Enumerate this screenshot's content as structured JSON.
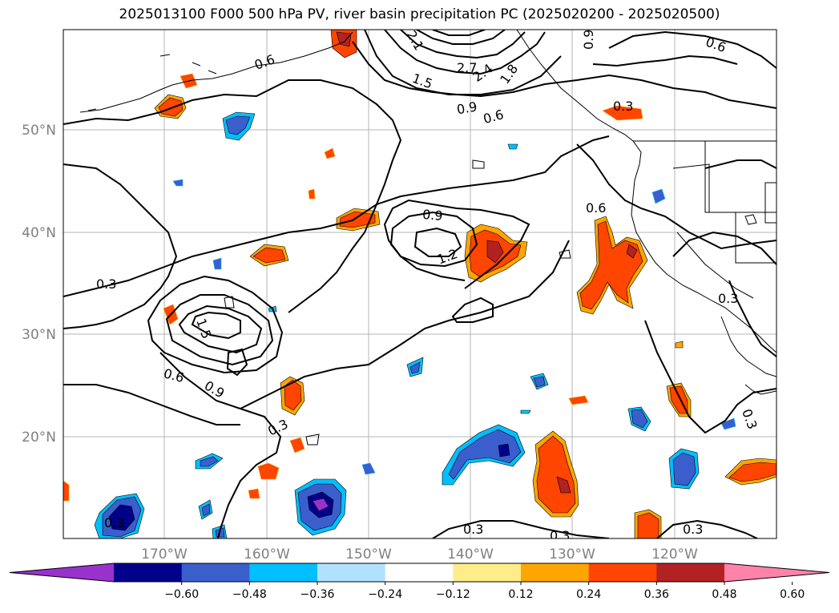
{
  "title": "2025013100 F000 500 hPa PV, river basin precipitation PC (2025020200 - 2025020500)",
  "lat_labels": [
    "50°N",
    "40°N",
    "30°N",
    "20°N"
  ],
  "lon_labels": [
    "170°W",
    "160°W",
    "150°W",
    "140°W",
    "130°W",
    "120°W"
  ],
  "contour_labels": [
    "0.3",
    "0.3",
    "0.3",
    "0.3",
    "0.3",
    "0.3",
    "0.3",
    "0.3",
    "0.6",
    "0.6",
    "0.6",
    "0.6",
    "0.6",
    "0.9",
    "0.9",
    "0.9",
    "0.9",
    "1.2",
    "1.5",
    "1.5",
    "1.8",
    "2.1",
    "2.4",
    "2.7"
  ],
  "colorbar": {
    "ticks": [
      "−0.60",
      "−0.48",
      "−0.36",
      "−0.24",
      "−0.12",
      "0.12",
      "0.24",
      "0.36",
      "0.48",
      "0.60"
    ],
    "colors": [
      "#9932cc",
      "#00008b",
      "#3a5fcd",
      "#00bfff",
      "#b0e2ff",
      "#ffffff",
      "#ffec8b",
      "#ffa500",
      "#ff4500",
      "#b22222",
      "#ff82ab"
    ]
  }
}
